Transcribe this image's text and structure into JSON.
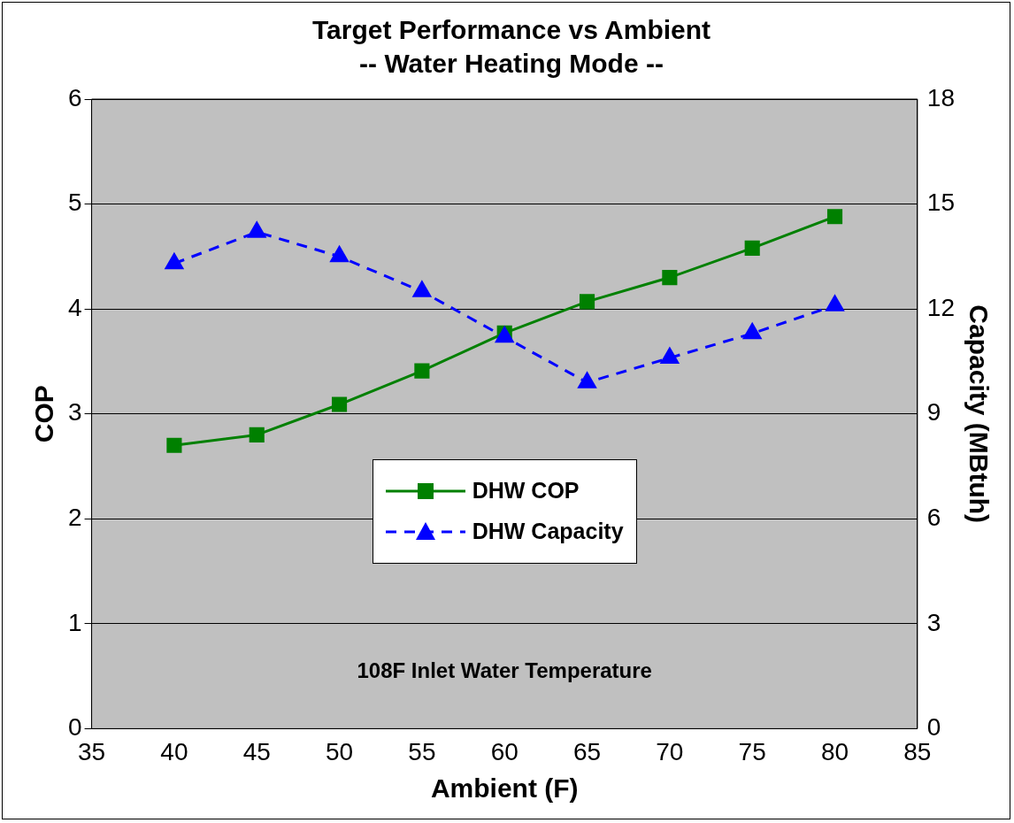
{
  "chart_data": {
    "type": "line",
    "title": "Target Performance vs Ambient",
    "subtitle": "-- Water Heating Mode --",
    "xlabel": "Ambient (F)",
    "ylabel": "COP",
    "y2label": "Capacity (MBtuh)",
    "x": [
      40,
      45,
      50,
      55,
      60,
      65,
      70,
      75,
      80
    ],
    "series": [
      {
        "name": "DHW COP",
        "color": "#008000",
        "marker": "square",
        "line_style": "solid",
        "values": [
          2.7,
          2.8,
          3.09,
          3.41,
          3.77,
          4.07,
          4.3,
          4.58,
          4.88
        ]
      },
      {
        "name": "DHW Capacity",
        "color": "#0000ff",
        "marker": "triangle",
        "line_style": "dashed",
        "axis": "y2",
        "values": [
          13.3,
          14.2,
          13.5,
          12.5,
          11.2,
          9.9,
          10.6,
          11.3,
          12.1
        ]
      }
    ],
    "xlim": [
      35,
      85
    ],
    "xticks": [
      35,
      40,
      45,
      50,
      55,
      60,
      65,
      70,
      75,
      80,
      85
    ],
    "ylim": [
      0,
      6
    ],
    "yticks": [
      0,
      1,
      2,
      3,
      4,
      5,
      6
    ],
    "y2lim": [
      0,
      18
    ],
    "y2ticks": [
      0,
      3,
      6,
      9,
      12,
      15,
      18
    ],
    "grid": "y",
    "legend": "center",
    "annotations": [
      "108F Inlet Water Temperature"
    ]
  }
}
